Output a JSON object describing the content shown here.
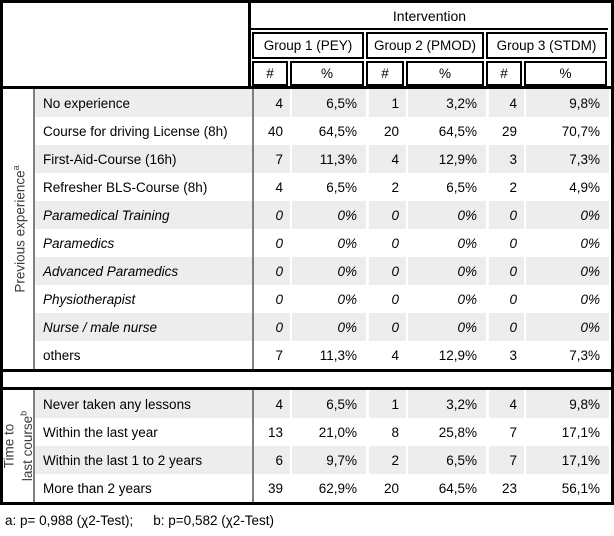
{
  "header": {
    "intervention_label": "Intervention",
    "groups": [
      {
        "label": "Group 1 (PEY)"
      },
      {
        "label": "Group 2 (PMOD)"
      },
      {
        "label": "Group 3 (STDM)"
      }
    ],
    "count_symbol": "#",
    "percent_symbol": "%"
  },
  "sections": [
    {
      "side_label": {
        "line1": "Previous experience",
        "sup": "a"
      },
      "rows": [
        {
          "label": "No experience",
          "italic": false,
          "values": [
            "4",
            "6,5%",
            "1",
            "3,2%",
            "4",
            "9,8%"
          ]
        },
        {
          "label": "Course for driving License (8h)",
          "italic": false,
          "values": [
            "40",
            "64,5%",
            "20",
            "64,5%",
            "29",
            "70,7%"
          ]
        },
        {
          "label": "First-Aid-Course (16h)",
          "italic": false,
          "values": [
            "7",
            "11,3%",
            "4",
            "12,9%",
            "3",
            "7,3%"
          ]
        },
        {
          "label": "Refresher BLS-Course (8h)",
          "italic": false,
          "values": [
            "4",
            "6,5%",
            "2",
            "6,5%",
            "2",
            "4,9%"
          ]
        },
        {
          "label": "Paramedical Training",
          "italic": true,
          "values": [
            "0",
            "0%",
            "0",
            "0%",
            "0",
            "0%"
          ]
        },
        {
          "label": "Paramedics",
          "italic": true,
          "values": [
            "0",
            "0%",
            "0",
            "0%",
            "0",
            "0%"
          ]
        },
        {
          "label": "Advanced Paramedics",
          "italic": true,
          "values": [
            "0",
            "0%",
            "0",
            "0%",
            "0",
            "0%"
          ]
        },
        {
          "label": "Physiotherapist",
          "italic": true,
          "values": [
            "0",
            "0%",
            "0",
            "0%",
            "0",
            "0%"
          ]
        },
        {
          "label": "Nurse / male nurse",
          "italic": true,
          "values": [
            "0",
            "0%",
            "0",
            "0%",
            "0",
            "0%"
          ]
        },
        {
          "label": "others",
          "italic": false,
          "values": [
            "7",
            "11,3%",
            "4",
            "12,9%",
            "3",
            "7,3%"
          ]
        }
      ]
    },
    {
      "side_label": {
        "line1": "Time to",
        "line2": "last course",
        "sup": "b"
      },
      "rows": [
        {
          "label": "Never taken any lessons",
          "italic": false,
          "values": [
            "4",
            "6,5%",
            "1",
            "3,2%",
            "4",
            "9,8%"
          ]
        },
        {
          "label": "Within the last year",
          "italic": false,
          "values": [
            "13",
            "21,0%",
            "8",
            "25,8%",
            "7",
            "17,1%"
          ]
        },
        {
          "label": "Within the last 1 to 2 years",
          "italic": false,
          "values": [
            "6",
            "9,7%",
            "2",
            "6,5%",
            "7",
            "17,1%"
          ]
        },
        {
          "label": "More than 2 years",
          "italic": false,
          "values": [
            "39",
            "62,9%",
            "20",
            "64,5%",
            "23",
            "56,1%"
          ]
        }
      ]
    }
  ],
  "footnotes": {
    "a": "a: p= 0,988 (χ2-Test);",
    "b": "b: p=0,582 (χ2-Test)"
  },
  "colors": {
    "zebra": "#ededed",
    "divider": "#808080",
    "border": "#000000"
  }
}
